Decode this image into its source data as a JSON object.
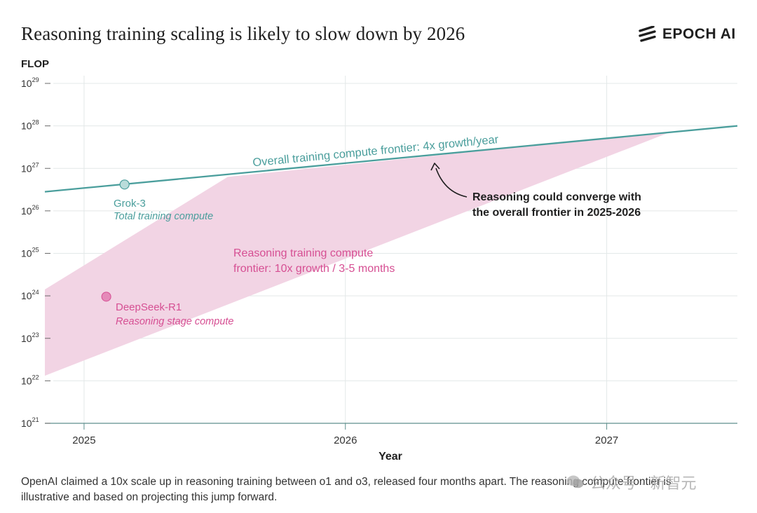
{
  "header": {
    "title": "Reasoning training scaling is likely to slow down by 2026",
    "logo_text": "EPOCH AI"
  },
  "chart_data": {
    "type": "line",
    "title": "Reasoning training scaling is likely to slow down by 2026",
    "xlabel": "Year",
    "ylabel": "FLOP",
    "xlim": [
      2024.85,
      2027.5
    ],
    "ylim_log10": [
      21,
      29
    ],
    "y_scale": "log",
    "grid": true,
    "x_ticks": [
      {
        "value": 2025,
        "label": "2025"
      },
      {
        "value": 2026,
        "label": "2026"
      },
      {
        "value": 2027,
        "label": "2027"
      }
    ],
    "y_ticks": [
      {
        "exp": 29,
        "base": "10",
        "sup": "29"
      },
      {
        "exp": 28,
        "base": "10",
        "sup": "28"
      },
      {
        "exp": 27,
        "base": "10",
        "sup": "27"
      },
      {
        "exp": 26,
        "base": "10",
        "sup": "26"
      },
      {
        "exp": 25,
        "base": "10",
        "sup": "25"
      },
      {
        "exp": 24,
        "base": "10",
        "sup": "24"
      },
      {
        "exp": 23,
        "base": "10",
        "sup": "23"
      },
      {
        "exp": 22,
        "base": "10",
        "sup": "22"
      },
      {
        "exp": 21,
        "base": "10",
        "sup": "21"
      }
    ],
    "series": [
      {
        "name": "Overall training compute frontier",
        "label": "Overall training compute frontier: 4x growth/year",
        "color": "#4a9e9c",
        "points": [
          {
            "x": 2024.85,
            "log10_y": 26.45
          },
          {
            "x": 2027.5,
            "log10_y": 28.0
          }
        ]
      }
    ],
    "band": {
      "name": "Reasoning training compute frontier",
      "label_lines": [
        "Reasoning training compute",
        "frontier: 10x growth / 3-5 months"
      ],
      "color": "#f2d4e4",
      "label_color": "#d64f93",
      "polygon": [
        {
          "x": 2024.85,
          "log10_y": 24.15
        },
        {
          "x": 2025.55,
          "log10_y": 26.8
        },
        {
          "x": 2027.25,
          "log10_y": 27.87
        },
        {
          "x": 2024.85,
          "log10_y": 22.12
        }
      ]
    },
    "points": [
      {
        "name": "Grok-3",
        "sublabel": "Total training compute",
        "x": 2025.155,
        "log10_y": 26.62,
        "color": "#4a9e9c"
      },
      {
        "name": "DeepSeek-R1",
        "sublabel": "Reasoning stage compute",
        "x": 2025.085,
        "log10_y": 23.98,
        "color": "#d64f93"
      }
    ],
    "annotations": [
      {
        "lines": [
          "Reasoning could converge with",
          "the overall frontier in 2025-2026"
        ],
        "color": "#1f1f1f"
      }
    ]
  },
  "footnote": "OpenAI claimed a 10x scale up in reasoning training between o1 and o3, released four months apart. The reasoning compute frontier is illustrative and based on projecting this jump forward.",
  "watermark": {
    "text": "公众号 · 新智元"
  },
  "colors": {
    "teal": "#4a9e9c",
    "pink": "#d64f93",
    "band": "#f2d4e4",
    "grid": "#e3e8e8",
    "axis": "#5d8f8d"
  }
}
